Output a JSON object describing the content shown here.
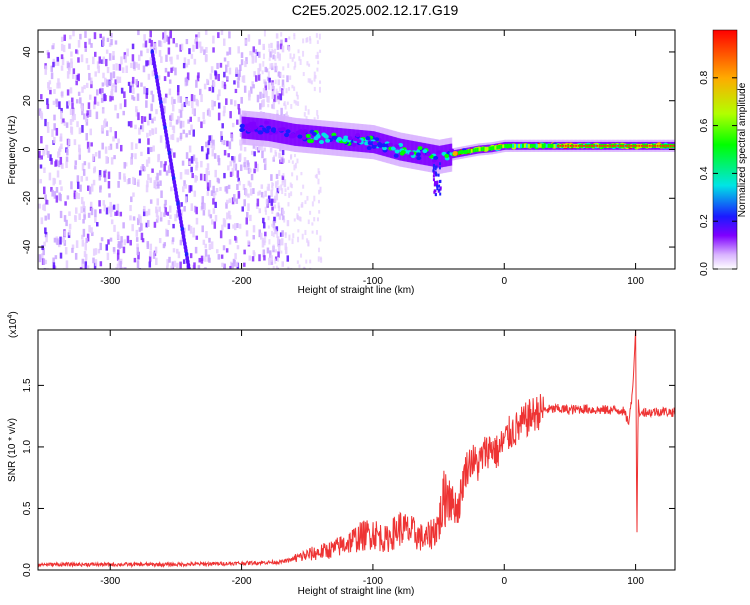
{
  "title": "C2E5.2025.002.12.17.G19",
  "chart_data": [
    {
      "type": "heatmap",
      "xlabel": "Height of straight line (km)",
      "ylabel": "Frequency (Hz)",
      "xlim": [
        -355,
        130
      ],
      "ylim": [
        -49,
        49
      ],
      "xticks": [
        -300,
        -200,
        -100,
        0,
        100
      ],
      "xtick_labels": [
        "-300",
        "-200",
        "-100",
        "0",
        "100"
      ],
      "yticks": [
        -40,
        -20,
        0,
        20,
        40
      ],
      "ytick_labels": [
        "-40",
        "-20",
        "0",
        "20",
        "40"
      ],
      "colorbar": {
        "label": "Normalized spectral amplitude",
        "range": [
          0,
          1
        ],
        "ticks": [
          0.0,
          0.2,
          0.4,
          0.6,
          0.8
        ],
        "tick_labels": [
          "0.0",
          "0.2",
          "0.4",
          "0.6",
          "0.8"
        ],
        "colormap": [
          "#ffffff",
          "#d9b3ff",
          "#7f00ff",
          "#1a1aff",
          "#00e5e5",
          "#00ff00",
          "#b2ff00",
          "#ffaa00",
          "#ff0000"
        ]
      },
      "features": {
        "noise_region_x": [
          -355,
          -165
        ],
        "diagonal_streak": {
          "x": [
            -268,
            -240
          ],
          "y": [
            40,
            -49
          ]
        },
        "signal_track": {
          "x": [
            -200,
            -180,
            -160,
            -140,
            -120,
            -100,
            -80,
            -60,
            -50,
            -40,
            -30,
            -20,
            -10,
            0,
            20,
            50,
            80,
            100,
            130
          ],
          "y": [
            9,
            8,
            6,
            5,
            4,
            3,
            0,
            -2,
            -3,
            -2,
            -1,
            0,
            0.5,
            1.5,
            1.5,
            1.5,
            1.5,
            1.5,
            1.5
          ]
        }
      }
    },
    {
      "type": "line",
      "xlabel": "Height of straight line (km)",
      "ylabel": "SNR (10 * v/v)",
      "multiplier_label": "(x10",
      "multiplier_exp": "4",
      "multiplier_close": ")",
      "xlim": [
        -355,
        130
      ],
      "ylim": [
        0,
        1.95
      ],
      "xticks": [
        -300,
        -200,
        -100,
        0,
        100
      ],
      "xtick_labels": [
        "-300",
        "-200",
        "-100",
        "0",
        "100"
      ],
      "yticks": [
        0.0,
        0.5,
        1.0,
        1.5
      ],
      "ytick_labels": [
        "0.0",
        "0.5",
        "1.0",
        "1.5"
      ],
      "color": "#ee3333",
      "series": [
        {
          "x": [
            -355,
            -300,
            -250,
            -200,
            -170,
            -150,
            -130,
            -110,
            -100,
            -90,
            -80,
            -70,
            -60,
            -50,
            -45,
            -40,
            -35,
            -30,
            -25,
            -20,
            -15,
            -10,
            -5,
            0,
            5,
            10,
            15,
            20,
            25,
            30,
            40,
            50,
            60,
            70,
            80,
            90,
            95,
            98,
            100,
            101,
            102,
            103,
            105,
            110,
            120,
            130
          ],
          "y": [
            0.03,
            0.03,
            0.03,
            0.04,
            0.05,
            0.1,
            0.14,
            0.22,
            0.25,
            0.2,
            0.28,
            0.25,
            0.2,
            0.3,
            0.5,
            0.55,
            0.5,
            0.8,
            0.9,
            0.85,
            0.95,
            1.0,
            0.95,
            1.05,
            1.12,
            1.15,
            1.2,
            1.25,
            1.28,
            1.3,
            1.31,
            1.3,
            1.31,
            1.3,
            1.3,
            1.3,
            1.2,
            1.5,
            1.95,
            0.25,
            1.4,
            1.25,
            1.29,
            1.28,
            1.29,
            1.28
          ]
        }
      ]
    }
  ]
}
